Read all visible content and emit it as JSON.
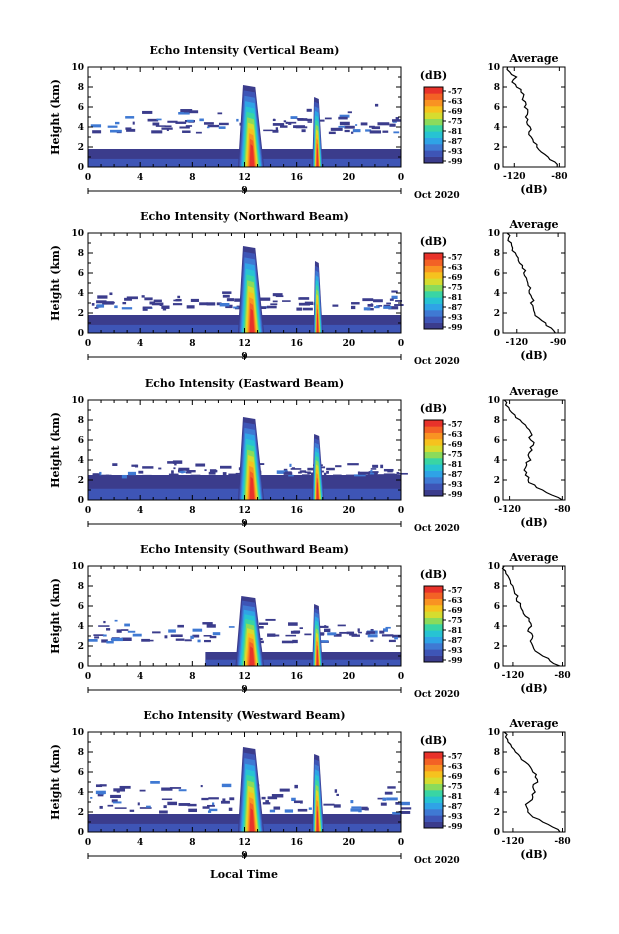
{
  "figure": {
    "xlabel": "Local Time",
    "date_label": "Oct 2020",
    "day_label": "9"
  },
  "colorbar": {
    "unit": "(dB)",
    "tick_labels": [
      "-57",
      "-63",
      "-69",
      "-75",
      "-81",
      "-87",
      "-93",
      "-99"
    ],
    "colors": [
      "#3b3c8c",
      "#3e55b6",
      "#3f79d3",
      "#2fa3e6",
      "#27c3d3",
      "#39d5a4",
      "#8bdb5b",
      "#d6dc2f",
      "#f6c21e",
      "#f99322",
      "#f36225",
      "#e8322a"
    ]
  },
  "average": {
    "title": "Average",
    "xlabel": "(dB)"
  },
  "chart_data": [
    {
      "type": "heatmap",
      "title": "Echo Intensity (Vertical Beam)",
      "ylabel": "Height (km)",
      "xlim": [
        0,
        24
      ],
      "ylim": [
        0,
        10
      ],
      "xticks": [
        "0",
        "4",
        "8",
        "12",
        "16",
        "20",
        "0"
      ],
      "yticks": [
        "0",
        "2",
        "4",
        "6",
        "8",
        "10"
      ],
      "low_layer_top_km": 1.8,
      "low_layer_span_h": [
        0,
        24
      ],
      "storm_cells": [
        {
          "start_h": 11.5,
          "end_h": 13.5,
          "top_km": 8.2,
          "core_h": 12.6
        },
        {
          "start_h": 17.2,
          "end_h": 18.0,
          "top_km": 7.0,
          "core_h": 17.6
        }
      ],
      "scatter_band_km": [
        3.5,
        6.5
      ],
      "average_profile": {
        "xticks": [
          "-120",
          "-80"
        ],
        "xlim": [
          -130,
          -75
        ],
        "yticks": [
          "0",
          "2",
          "4",
          "6",
          "8",
          "10"
        ],
        "ylim": [
          0,
          10
        ],
        "height_km": [
          0,
          0.5,
          1,
          1.5,
          2,
          2.5,
          3,
          3.5,
          4,
          4.5,
          5,
          5.5,
          6,
          6.5,
          7,
          7.5,
          8,
          8.5,
          9,
          9.5,
          10
        ],
        "value_db": [
          -82,
          -84,
          -90,
          -96,
          -100,
          -103,
          -105,
          -107,
          -106,
          -109,
          -110,
          -108,
          -111,
          -110,
          -112,
          -114,
          -118,
          -122,
          -118,
          -124,
          -126
        ]
      }
    },
    {
      "type": "heatmap",
      "title": "Echo Intensity (Northward Beam)",
      "ylabel": "Height (km)",
      "xlim": [
        0,
        24
      ],
      "ylim": [
        0,
        10
      ],
      "xticks": [
        "0",
        "4",
        "8",
        "12",
        "16",
        "20",
        "0"
      ],
      "yticks": [
        "0",
        "2",
        "4",
        "6",
        "8",
        "10"
      ],
      "low_layer_top_km": 1.8,
      "low_layer_span_h": [
        0,
        24
      ],
      "storm_cells": [
        {
          "start_h": 11.5,
          "end_h": 13.5,
          "top_km": 8.7,
          "core_h": 12.6
        },
        {
          "start_h": 17.3,
          "end_h": 18.0,
          "top_km": 7.2,
          "core_h": 17.6
        }
      ],
      "scatter_band_km": [
        2.5,
        4.5
      ],
      "average_profile": {
        "xticks": [
          "-120",
          "-90"
        ],
        "xlim": [
          -130,
          -85
        ],
        "yticks": [
          "0",
          "2",
          "4",
          "6",
          "8",
          "10"
        ],
        "ylim": [
          0,
          10
        ],
        "height_km": [
          0,
          0.5,
          1,
          1.5,
          2,
          2.5,
          3,
          3.5,
          4,
          4.5,
          5,
          5.5,
          6,
          6.5,
          7,
          7.5,
          8,
          8.5,
          9,
          9.5,
          10
        ],
        "value_db": [
          -92,
          -95,
          -99,
          -104,
          -107,
          -108,
          -110,
          -109,
          -111,
          -110,
          -112,
          -113,
          -115,
          -116,
          -118,
          -119,
          -121,
          -123,
          -124,
          -126,
          -127
        ]
      }
    },
    {
      "type": "heatmap",
      "title": "Echo Intensity (Eastward Beam)",
      "ylabel": "Height (km)",
      "xlim": [
        0,
        24
      ],
      "ylim": [
        0,
        10
      ],
      "xticks": [
        "0",
        "4",
        "8",
        "12",
        "16",
        "20",
        "0"
      ],
      "yticks": [
        "0",
        "2",
        "4",
        "6",
        "8",
        "10"
      ],
      "low_layer_top_km": 2.5,
      "low_layer_span_h": [
        0,
        24
      ],
      "storm_cells": [
        {
          "start_h": 11.5,
          "end_h": 13.5,
          "top_km": 8.3,
          "core_h": 12.6
        },
        {
          "start_h": 17.2,
          "end_h": 18.1,
          "top_km": 6.6,
          "core_h": 17.6
        }
      ],
      "scatter_band_km": [
        2.5,
        4.0
      ],
      "average_profile": {
        "xticks": [
          "-120",
          "-80"
        ],
        "xlim": [
          -125,
          -78
        ],
        "yticks": [
          "0",
          "2",
          "4",
          "6",
          "8",
          "10"
        ],
        "ylim": [
          0,
          10
        ],
        "height_km": [
          0,
          0.5,
          1,
          1.5,
          2,
          2.5,
          3,
          3.5,
          4,
          4.5,
          5,
          5.5,
          6,
          6.5,
          7,
          7.5,
          8,
          8.5,
          9,
          9.5,
          10
        ],
        "value_db": [
          -80,
          -88,
          -95,
          -101,
          -106,
          -108,
          -109,
          -107,
          -104,
          -106,
          -103,
          -102,
          -104,
          -103,
          -105,
          -108,
          -112,
          -116,
          -120,
          -123,
          -124
        ]
      }
    },
    {
      "type": "heatmap",
      "title": "Echo Intensity (Southward Beam)",
      "ylabel": "Height (km)",
      "xlim": [
        0,
        24
      ],
      "ylim": [
        0,
        10
      ],
      "xticks": [
        "0",
        "4",
        "8",
        "12",
        "16",
        "20",
        "0"
      ],
      "yticks": [
        "0",
        "2",
        "4",
        "6",
        "8",
        "10"
      ],
      "low_layer_top_km": 1.4,
      "low_layer_span_h": [
        9,
        24
      ],
      "storm_cells": [
        {
          "start_h": 11.3,
          "end_h": 13.5,
          "top_km": 7.0,
          "core_h": 12.6
        },
        {
          "start_h": 17.2,
          "end_h": 18.0,
          "top_km": 6.2,
          "core_h": 17.6
        }
      ],
      "scatter_band_km": [
        2.5,
        5.0
      ],
      "average_profile": {
        "xticks": [
          "-120",
          "-80"
        ],
        "xlim": [
          -128,
          -78
        ],
        "yticks": [
          "0",
          "2",
          "4",
          "6",
          "8",
          "10"
        ],
        "ylim": [
          0,
          10
        ],
        "height_km": [
          0,
          0.5,
          1,
          1.5,
          2,
          2.5,
          3,
          3.5,
          4,
          4.5,
          5,
          5.5,
          6,
          6.5,
          7,
          7.5,
          8,
          8.5,
          9,
          9.5,
          10
        ],
        "value_db": [
          -82,
          -90,
          -96,
          -102,
          -104,
          -106,
          -104,
          -108,
          -105,
          -107,
          -110,
          -112,
          -114,
          -117,
          -116,
          -119,
          -120,
          -122,
          -124,
          -126,
          -127
        ]
      }
    },
    {
      "type": "heatmap",
      "title": "Echo Intensity (Westward Beam)",
      "ylabel": "Height (km)",
      "xlim": [
        0,
        24
      ],
      "ylim": [
        0,
        10
      ],
      "xticks": [
        "0",
        "4",
        "8",
        "12",
        "16",
        "20",
        "0"
      ],
      "yticks": [
        "0",
        "2",
        "4",
        "6",
        "8",
        "10"
      ],
      "low_layer_top_km": 1.8,
      "low_layer_span_h": [
        0,
        24
      ],
      "storm_cells": [
        {
          "start_h": 11.5,
          "end_h": 13.5,
          "top_km": 8.5,
          "core_h": 12.6
        },
        {
          "start_h": 17.2,
          "end_h": 18.1,
          "top_km": 7.8,
          "core_h": 17.6
        }
      ],
      "scatter_band_km": [
        2.0,
        5.5
      ],
      "average_profile": {
        "xticks": [
          "-120",
          "-80"
        ],
        "xlim": [
          -128,
          -78
        ],
        "yticks": [
          "0",
          "2",
          "4",
          "6",
          "8",
          "10"
        ],
        "ylim": [
          0,
          10
        ],
        "height_km": [
          0,
          0.5,
          1,
          1.5,
          2,
          2.5,
          3,
          3.5,
          4,
          4.5,
          5,
          5.5,
          6,
          6.5,
          7,
          7.5,
          8,
          8.5,
          9,
          9.5,
          10
        ],
        "value_db": [
          -82,
          -88,
          -96,
          -104,
          -108,
          -109,
          -107,
          -104,
          -102,
          -104,
          -100,
          -102,
          -104,
          -106,
          -110,
          -114,
          -118,
          -121,
          -124,
          -126,
          -127
        ]
      }
    }
  ]
}
